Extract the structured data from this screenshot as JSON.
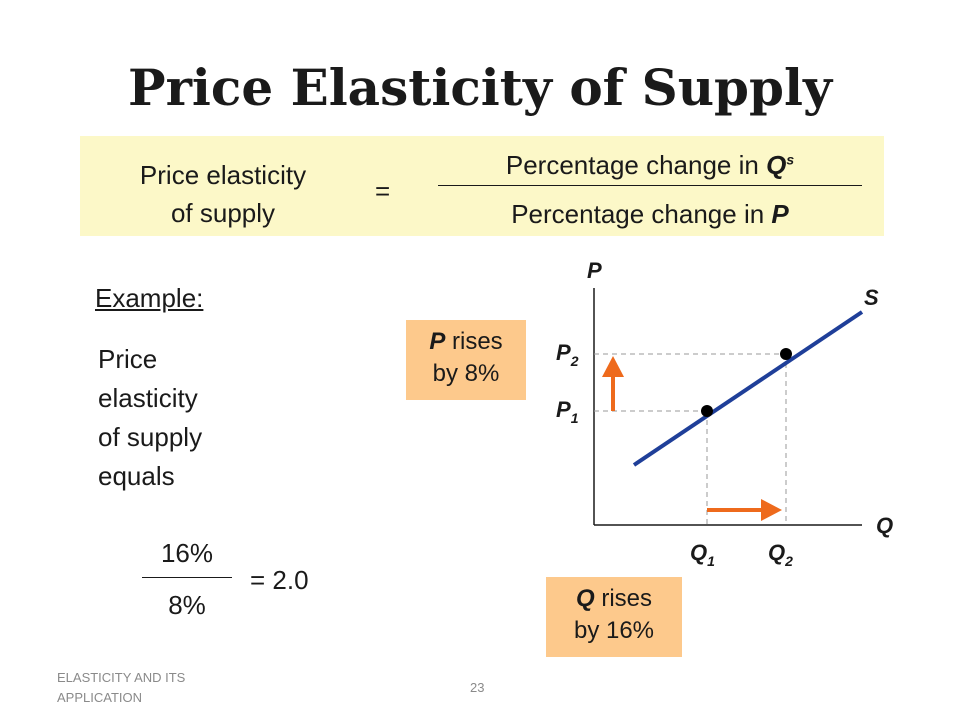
{
  "slide": {
    "title": "Price Elasticity of Supply",
    "footer_left": "ELASTICITY AND ITS APPLICATION",
    "page_number": "23"
  },
  "formula": {
    "left_line1": "Price elasticity",
    "left_line2": "of supply",
    "equals": "=",
    "numerator_text": "Percentage change in ",
    "numerator_var": "Q",
    "numerator_sup": "s",
    "denominator_text": "Percentage change in ",
    "denominator_var": "P"
  },
  "example": {
    "label": "Example:",
    "lines": [
      "Price",
      "elasticity",
      "of supply",
      "equals"
    ],
    "numerator": "16%",
    "denominator": "8%",
    "result": "=  2.0"
  },
  "callouts": {
    "p_var": "P",
    "p_text1": " rises",
    "p_text2": "by 8%",
    "q_var": "Q",
    "q_text1": " rises",
    "q_text2": "by 16%"
  },
  "graph": {
    "y_axis_label": "P",
    "x_axis_label": "Q",
    "curve_label": "S",
    "p1_base": "P",
    "p1_sub": "1",
    "p2_base": "P",
    "p2_sub": "2",
    "q1_base": "Q",
    "q1_sub": "1",
    "q2_base": "Q",
    "q2_sub": "2"
  },
  "colors": {
    "formula_bg": "#fcf8c8",
    "callout_bg": "#fdc98c",
    "supply_curve": "#1f3f99",
    "arrow": "#ee6a1c"
  }
}
